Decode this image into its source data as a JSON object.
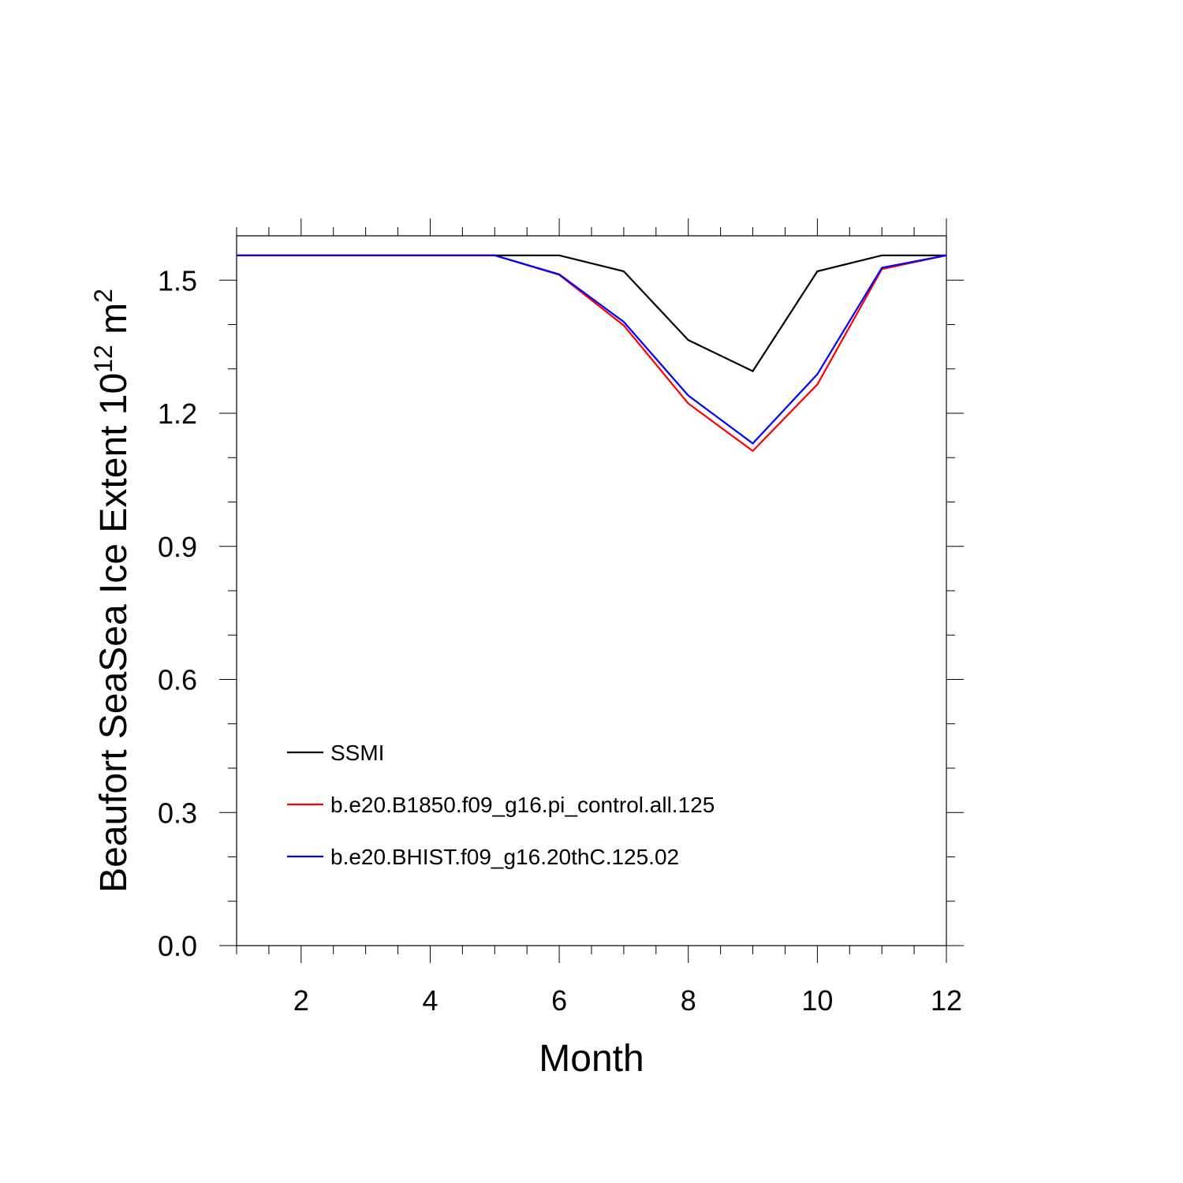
{
  "chart_data": {
    "type": "line",
    "title": "",
    "xlabel": "Month",
    "ylabel": {
      "main": "Beaufort SeaSea Ice Extent 10",
      "sup1": "12",
      "unit": " m",
      "sup2": "2"
    },
    "xlim": [
      1,
      12
    ],
    "ylim": [
      0.0,
      1.6
    ],
    "x_ticks": [
      2,
      4,
      6,
      8,
      10,
      12
    ],
    "y_ticks": [
      0.0,
      0.3,
      0.6,
      0.9,
      1.2,
      1.5
    ],
    "y_tick_labels": [
      "0.0",
      "0.3",
      "0.6",
      "0.9",
      "1.2",
      "1.5"
    ],
    "grid": false,
    "legend_placement": "bottom-left",
    "x": [
      1,
      2,
      3,
      4,
      5,
      6,
      7,
      8,
      9,
      10,
      11,
      12
    ],
    "series": [
      {
        "name": "SSMI",
        "color": "#000000",
        "values": [
          1.556,
          1.556,
          1.556,
          1.556,
          1.556,
          1.556,
          1.52,
          1.365,
          1.295,
          1.52,
          1.556,
          1.556
        ]
      },
      {
        "name": "b.e20.B1850.f09_g16.pi_control.all.125",
        "color": "#ff0000",
        "values": [
          1.556,
          1.556,
          1.556,
          1.556,
          1.556,
          1.512,
          1.398,
          1.222,
          1.115,
          1.265,
          1.525,
          1.556
        ]
      },
      {
        "name": "b.e20.BHIST.f09_g16.20thC.125.02",
        "color": "#0000ff",
        "values": [
          1.556,
          1.556,
          1.556,
          1.556,
          1.556,
          1.513,
          1.406,
          1.24,
          1.132,
          1.288,
          1.528,
          1.556
        ]
      }
    ]
  }
}
